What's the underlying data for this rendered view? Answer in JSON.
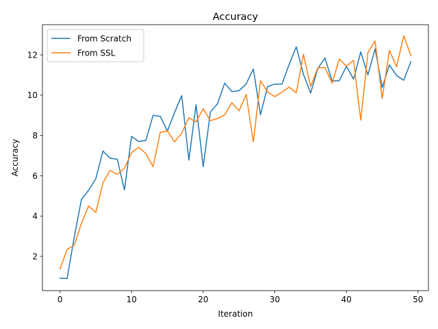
{
  "chart_data": {
    "type": "line",
    "title": "Accuracy",
    "xlabel": "Iteration",
    "ylabel": "Accuracy",
    "xlim": [
      -2.45,
      51.45
    ],
    "ylim": [
      0.3,
      13.5
    ],
    "xticks": [
      0,
      10,
      20,
      30,
      40,
      50
    ],
    "yticks": [
      2,
      4,
      6,
      8,
      10,
      12
    ],
    "legend_position": "top-left",
    "grid": false,
    "x": [
      0,
      1,
      2,
      3,
      4,
      5,
      6,
      7,
      8,
      9,
      10,
      11,
      12,
      13,
      14,
      15,
      16,
      17,
      18,
      19,
      20,
      21,
      22,
      23,
      24,
      25,
      26,
      27,
      28,
      29,
      30,
      31,
      32,
      33,
      34,
      35,
      36,
      37,
      38,
      39,
      40,
      41,
      42,
      43,
      44,
      45,
      46,
      47,
      48,
      49
    ],
    "series": [
      {
        "name": "From Scratch",
        "color": "#1f77b4",
        "values": [
          0.92,
          0.9,
          2.98,
          4.83,
          5.28,
          5.85,
          7.23,
          6.87,
          6.82,
          5.3,
          7.96,
          7.7,
          7.76,
          9.0,
          8.95,
          8.22,
          9.14,
          9.98,
          6.78,
          9.53,
          6.45,
          9.16,
          9.58,
          10.6,
          10.18,
          10.22,
          10.56,
          11.3,
          9.03,
          10.43,
          10.55,
          10.55,
          11.53,
          12.4,
          11.03,
          10.1,
          11.32,
          11.85,
          10.7,
          10.72,
          11.43,
          10.79,
          12.15,
          11.0,
          12.3,
          10.38,
          11.5,
          10.98,
          10.74,
          11.66
        ]
      },
      {
        "name": "From SSL",
        "color": "#ff7f0e",
        "values": [
          1.38,
          2.35,
          2.55,
          3.65,
          4.5,
          4.18,
          5.65,
          6.27,
          6.07,
          6.37,
          7.15,
          7.41,
          7.1,
          6.45,
          8.15,
          8.23,
          7.68,
          8.12,
          8.88,
          8.67,
          9.33,
          8.74,
          8.84,
          9.02,
          9.63,
          9.22,
          10.04,
          7.68,
          10.72,
          10.16,
          9.93,
          10.15,
          10.4,
          10.12,
          12.03,
          10.42,
          11.36,
          11.37,
          10.6,
          11.79,
          11.44,
          11.73,
          8.76,
          12.12,
          12.69,
          9.84,
          12.22,
          11.41,
          12.95,
          11.97
        ]
      }
    ]
  }
}
